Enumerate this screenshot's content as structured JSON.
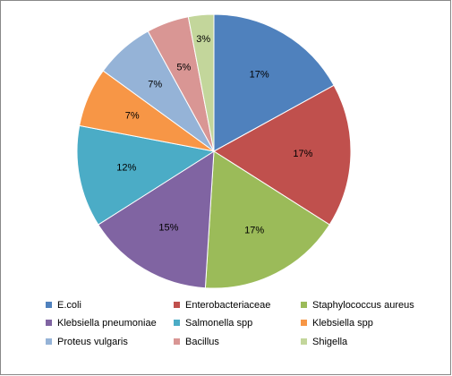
{
  "chart_data": {
    "type": "pie",
    "categories": [
      "E.coli",
      "Enterobacteriaceae",
      "Staphylococcus aureus",
      "Klebsiella pneumoniae",
      "Salmonella spp",
      "Klebsiella spp",
      "Proteus vulgaris",
      "Bacillus",
      "Shigella"
    ],
    "values": [
      17,
      17,
      17,
      15,
      12,
      7,
      7,
      5,
      3
    ],
    "value_labels": [
      "17%",
      "17%",
      "17%",
      "15%",
      "12%",
      "7%",
      "7%",
      "5%",
      "3%"
    ],
    "colors": [
      "#4f81bd",
      "#c0504d",
      "#9bbb59",
      "#8064a2",
      "#4bacc6",
      "#f79646",
      "#95b3d7",
      "#d99694",
      "#c3d69b"
    ],
    "legend": "bottom"
  }
}
